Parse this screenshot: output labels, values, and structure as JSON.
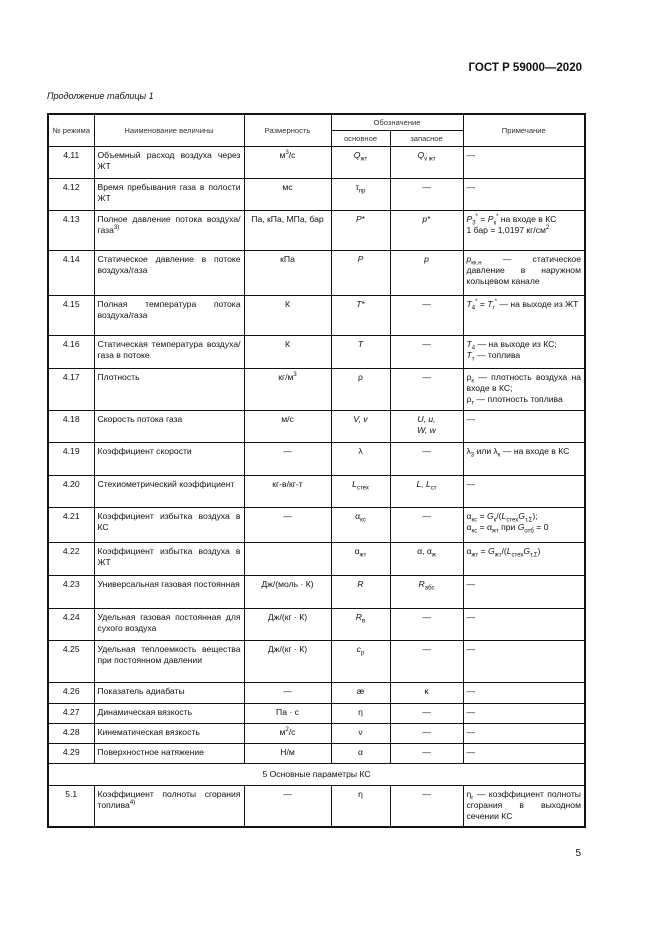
{
  "header": {
    "standard": "ГОСТ Р 59000—2020",
    "caption": "Продолжение таблицы 1"
  },
  "table": {
    "headers": {
      "no": "№ режима",
      "name": "Наименование величины",
      "unit": "Размерность",
      "symbol": "Обозначение",
      "main": "основное",
      "reserve": "запасное",
      "note": "Примечание"
    },
    "rows": [
      {
        "no": "4.11",
        "name": "Объемный расход воздуха через ЖТ",
        "unit": "м<sup>3</sup>/с",
        "main": "<i>Q</i><sub>жт</sub>",
        "reserve": "<i>Q</i><sub>v жт</sub>",
        "note": "—"
      },
      {
        "no": "4.12",
        "name": "Время пребывания газа в полости ЖТ",
        "unit": "мс",
        "main": "τ<sub>пр</sub>",
        "reserve": "—",
        "note": "—"
      },
      {
        "no": "4.13",
        "name": "Полное давление потока воздуха/газа<sup>3)</sup>",
        "unit": "Па, кПа, МПа, бар",
        "main": "<i>P</i>*",
        "reserve": "<i>p</i>*",
        "note": "<i>P</i><sub>3</sub><sup>*</sup> = <i>P</i><sub>к</sub><sup>*</sup> на входе в КС<br>1 бар = 1,0197 кг/см<sup>2</sup>"
      },
      {
        "no": "4.14",
        "name": "Статическое давление в потоке воздуха/газа",
        "unit": "кПа",
        "main": "<i>P</i>",
        "reserve": "<i>p</i>",
        "note": "<i>p</i><sub>кк.н</sub> — статическое давление в наружном кольцевом канале"
      },
      {
        "no": "4.15",
        "name": "Полная температура потока воздуха/газа",
        "unit": "К",
        "main": "<i>T</i>*",
        "reserve": "—",
        "note": "<i>T</i><sub>4</sub><sup>*</sup> = <i>T</i><sub>г</sub><sup>*</sup> — на выходе из ЖТ"
      },
      {
        "no": "4.16",
        "name": "Статическая температура воздуха/газа в потоке",
        "unit": "К",
        "main": "<i>T</i>",
        "reserve": "—",
        "note": "<i>T</i><sub>4</sub> — на выходе из КС;<br><i>T</i><sub>т</sub> — топлива"
      },
      {
        "no": "4.17",
        "name": "Плотность",
        "unit": "кг/м<sup>3</sup>",
        "main": "ρ",
        "reserve": "—",
        "note": "ρ<sub>к</sub> — плотность воздуха на входе в КС;<br>ρ<sub>т</sub> — плотность топлива"
      },
      {
        "no": "4.18",
        "name": "Скорость потока газа",
        "unit": "м/с",
        "main": "<i>V, v</i>",
        "reserve": "<i>U, u,<br>W, w</i>",
        "note": "—"
      },
      {
        "no": "4.19",
        "name": "Коэффициент скорости",
        "unit": "—",
        "main": "λ",
        "reserve": "—",
        "note": "λ<sub>3</sub> или λ<sub>к</sub> — на входе в КС"
      },
      {
        "no": "4.20",
        "name": "Стехиометрический коэффициент",
        "unit": "кг-в/кг-т",
        "main": "<i>L</i><sub>стех</sub>",
        "reserve": "<i>L, L</i><sub>ст</sub>",
        "note": "—"
      },
      {
        "no": "4.21",
        "name": "Коэффициент избытка воздуха в КС",
        "unit": "—",
        "main": "α<sub>кс</sub>",
        "reserve": "—",
        "note": "α<sub>кс</sub> = <i>G</i><sub>к</sub>/(<i>L</i><sub>стех</sub><i>G</i><sub>т,Σ</sub>);<br>α<sub>кс</sub> = α<sub>жт</sub> при <i>G</i><sub>отб</sub> = 0"
      },
      {
        "no": "4.22",
        "name": "Коэффициент избытка воздуха в ЖТ",
        "unit": "",
        "main": "α<sub>жт</sub>",
        "reserve": "α, α<sub>ж</sub>",
        "note": "α<sub>жт</sub> = <i>G</i><sub>жт</sub>/(<i>L</i><sub>стех</sub><i>G</i><sub>т,Σ</sub>)"
      },
      {
        "no": "4.23",
        "name": "Универсальная газовая постоянная",
        "unit": "Дж/(моль · К)",
        "main": "<i>R</i>",
        "reserve": "<i>R</i><sub>абс</sub>",
        "note": "—"
      },
      {
        "no": "4.24",
        "name": "Удельная газовая постоянная для сухого воздуха",
        "unit": "Дж/(кг · К)",
        "main": "<i>R</i><sub>в</sub>",
        "reserve": "—",
        "note": "—"
      },
      {
        "no": "4.25",
        "name": "Удельная теплоемкость вещества при постоянном давлении",
        "unit": "Дж/(кг · К)",
        "main": "<i>c</i><sub>p</sub>",
        "reserve": "—",
        "note": "—"
      },
      {
        "no": "4.26",
        "name": "Показатель адиабаты",
        "unit": "—",
        "main": "ӕ",
        "reserve": "κ",
        "note": "—"
      },
      {
        "no": "4.27",
        "name": "Динамическая вязкость",
        "unit": "Па · с",
        "main": "η",
        "reserve": "—",
        "note": "—"
      },
      {
        "no": "4.28",
        "name": "Кинематическая вязкость",
        "unit": "м<sup>2</sup>/с",
        "main": "ν",
        "reserve": "—",
        "note": "—"
      },
      {
        "no": "4.29",
        "name": "Поверхностное натяжение",
        "unit": "Н/м",
        "main": "α",
        "reserve": "—",
        "note": "—"
      }
    ],
    "section": "5 Основные параметры КС",
    "rows2": [
      {
        "no": "5.1",
        "name": "Коэффициент полноты сгорания топлива<sup>4)</sup>",
        "unit": "—",
        "main": "η",
        "reserve": "—",
        "note": "η<sub>г</sub> — коэффициент полноты сгорания в выходном сечении КС"
      }
    ]
  },
  "footer": {
    "page": "5"
  }
}
